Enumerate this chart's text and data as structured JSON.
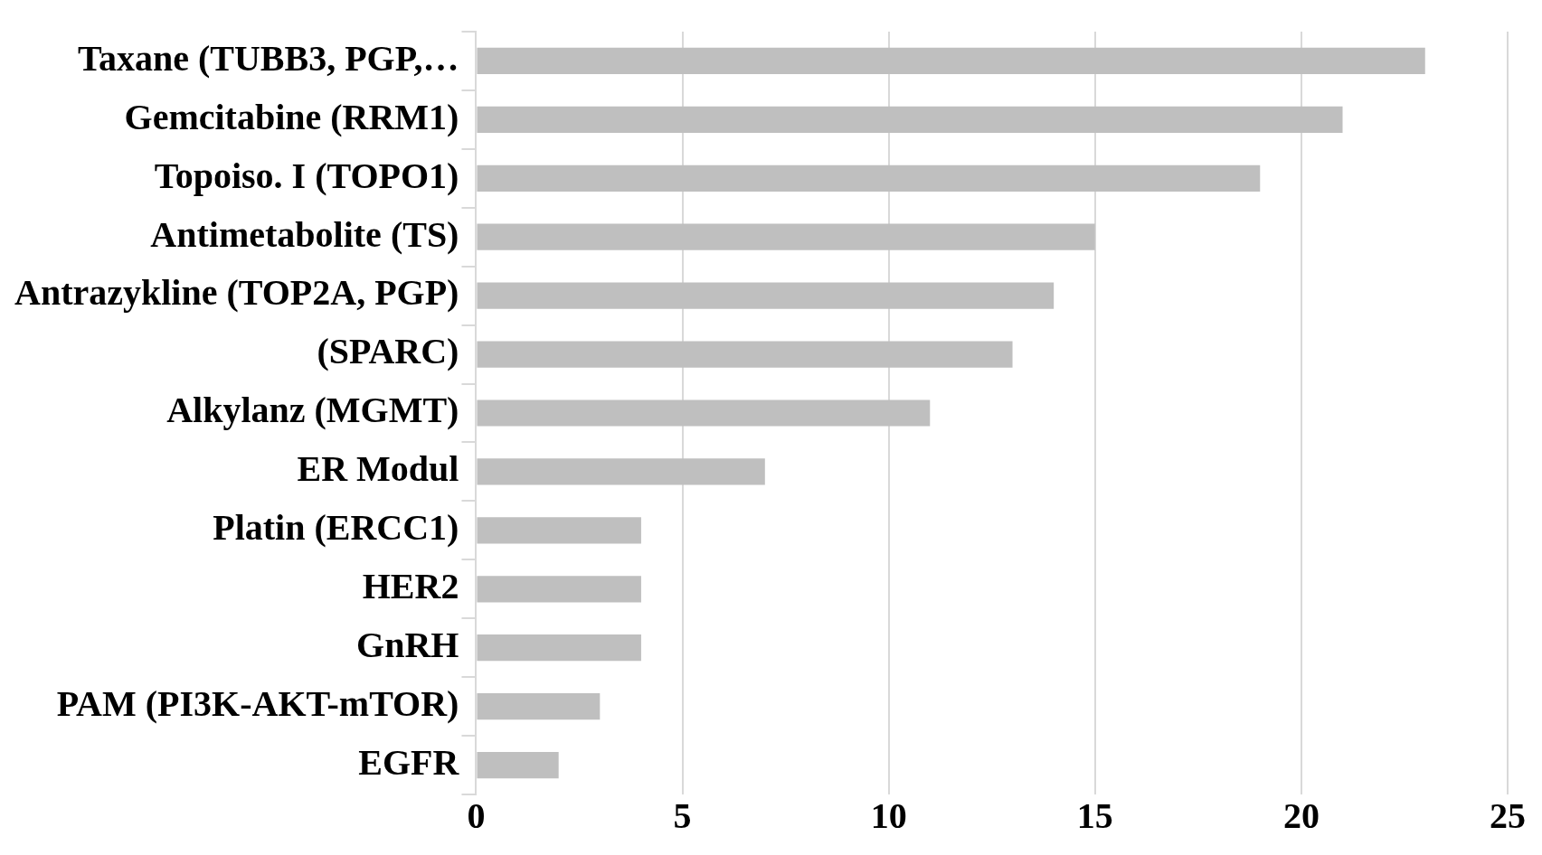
{
  "chart_data": {
    "type": "bar",
    "orientation": "horizontal",
    "categories": [
      "Taxane (TUBB3, PGP,…",
      "Gemcitabine (RRM1)",
      "Topoiso. I (TOPO1)",
      "Antimetabolite (TS)",
      "Antrazykline (TOP2A, PGP)",
      "(SPARC)",
      "Alkylanz (MGMT)",
      "ER Modul",
      "Platin (ERCC1)",
      "HER2",
      "GnRH",
      "PAM (PI3K-AKT-mTOR)",
      "EGFR"
    ],
    "values": [
      23,
      21,
      19,
      15,
      14,
      13,
      11,
      7,
      4,
      4,
      4,
      3,
      2
    ],
    "color": "#bfbfbf",
    "xlim": [
      0,
      25
    ],
    "xticks": [
      0,
      5,
      10,
      15,
      20,
      25
    ],
    "grid": "x",
    "legend": false
  }
}
